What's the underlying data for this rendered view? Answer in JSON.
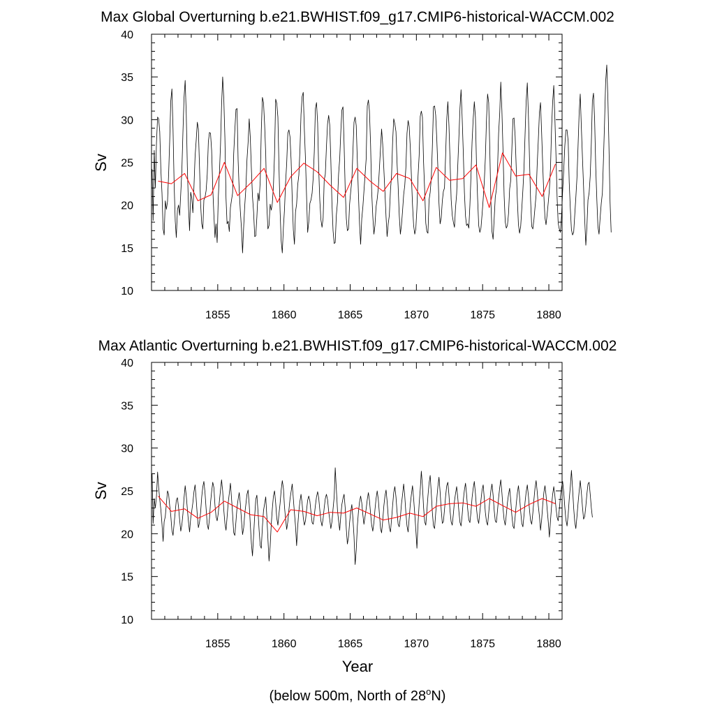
{
  "colors": {
    "raw": "#000000",
    "mean": "#ff0000",
    "axis": "#000000"
  },
  "footnote": {
    "prefix": "(below 500m, North of 28",
    "sup": "o",
    "suffix": "N)"
  },
  "chart_data": [
    {
      "type": "line",
      "id": "global",
      "title": "Max Global Overturning b.e21.BWHIST.f09_g17.CMIP6-historical-WACCM.002",
      "xlabel": "",
      "ylabel": "Sv",
      "xlim": [
        1850,
        1881
      ],
      "ylim": [
        10,
        40
      ],
      "xticks": [
        1855,
        1860,
        1865,
        1870,
        1875,
        1880
      ],
      "yticks": [
        10,
        15,
        20,
        25,
        30,
        35,
        40
      ],
      "series": [
        {
          "name": "monthly",
          "x_start": 1850.04,
          "x_step": 0.0833333,
          "values": [
            24.2,
            18.2,
            26.4,
            22.0,
            27.3,
            30.3,
            30.1,
            28.6,
            24.1,
            21.4,
            17.2,
            16.5,
            20.5,
            19.5,
            20.4,
            23.6,
            27.4,
            32.2,
            33.6,
            28.9,
            22.4,
            18.1,
            16.2,
            19.4,
            20.0,
            18.8,
            21.4,
            23.9,
            28.5,
            32.6,
            34.6,
            30.5,
            24.5,
            19.9,
            17.0,
            21.5,
            20.8,
            19.1,
            22.2,
            25.7,
            27.6,
            29.7,
            28.9,
            24.6,
            20.1,
            17.8,
            17.2,
            20.6,
            20.9,
            21.7,
            23.6,
            27.4,
            28.5,
            28.4,
            26.4,
            22.0,
            18.9,
            16.2,
            17.8,
            15.6,
            20.8,
            23.7,
            27.0,
            31.6,
            35.0,
            32.5,
            27.9,
            20.8,
            17.8,
            18.1,
            16.9,
            19.7,
            20.6,
            21.4,
            26.0,
            28.7,
            31.2,
            31.3,
            25.3,
            21.7,
            19.3,
            17.3,
            14.4,
            17.5,
            19.9,
            21.9,
            25.3,
            27.3,
            30.1,
            28.0,
            24.3,
            21.0,
            19.2,
            16.3,
            16.4,
            18.6,
            21.4,
            20.5,
            22.8,
            28.7,
            32.6,
            32.0,
            29.4,
            25.9,
            20.0,
            17.2,
            17.6,
            20.1,
            19.4,
            20.2,
            22.2,
            26.0,
            32.4,
            31.9,
            30.3,
            24.6,
            19.4,
            15.8,
            14.4,
            17.4,
            19.4,
            22.6,
            24.9,
            28.4,
            28.8,
            28.0,
            25.3,
            20.8,
            17.1,
            15.4,
            19.2,
            20.1,
            22.4,
            23.5,
            26.5,
            30.6,
            32.7,
            33.2,
            28.8,
            25.4,
            21.2,
            16.8,
            18.0,
            20.2,
            20.6,
            21.4,
            23.1,
            26.2,
            31.3,
            32.0,
            29.6,
            24.3,
            20.6,
            18.3,
            17.4,
            18.5,
            22.9,
            23.6,
            26.8,
            29.5,
            30.5,
            29.4,
            25.3,
            20.2,
            17.0,
            15.5,
            15.6,
            18.8,
            20.3,
            23.6,
            25.4,
            28.4,
            31.1,
            31.5,
            27.1,
            21.8,
            18.4,
            17.0,
            17.2,
            20.1,
            21.6,
            22.9,
            26.2,
            29.7,
            30.3,
            29.3,
            25.1,
            21.4,
            17.8,
            15.4,
            18.4,
            19.8,
            21.6,
            23.5,
            25.4,
            31.6,
            32.3,
            31.0,
            27.2,
            21.6,
            18.7,
            16.6,
            17.6,
            19.8,
            20.7,
            22.0,
            24.3,
            26.7,
            28.9,
            27.1,
            24.3,
            21.5,
            18.6,
            16.3,
            17.8,
            18.8,
            21.7,
            23.5,
            27.4,
            30.1,
            29.5,
            28.6,
            24.8,
            22.2,
            18.8,
            16.6,
            17.7,
            19.4,
            21.2,
            22.3,
            24.4,
            28.4,
            29.9,
            29.2,
            26.8,
            23.4,
            20.0,
            17.6,
            16.6,
            17.2,
            19.6,
            23.4,
            25.8,
            30.4,
            31.0,
            30.3,
            25.1,
            21.7,
            17.9,
            16.9,
            16.7,
            20.6,
            21.5,
            23.2,
            26.8,
            31.5,
            31.6,
            30.5,
            27.6,
            24.4,
            20.2,
            17.8,
            18.5,
            20.5,
            21.6,
            22.0,
            25.8,
            30.0,
            32.1,
            29.3,
            25.3,
            20.7,
            18.8,
            18.0,
            17.4,
            19.7,
            21.3,
            24.6,
            27.9,
            31.4,
            33.5,
            30.2,
            26.2,
            21.5,
            18.7,
            17.6,
            17.8,
            17.3,
            20.0,
            23.6,
            27.4,
            30.1,
            32.1,
            30.3,
            24.5,
            20.8,
            17.6,
            16.8,
            17.3,
            18.9,
            20.7,
            22.6,
            25.5,
            29.9,
            33.0,
            32.0,
            26.8,
            20.5,
            16.9,
            16.0,
            18.5,
            20.9,
            21.8,
            24.1,
            28.4,
            30.8,
            34.4,
            31.1,
            26.4,
            21.1,
            18.0,
            17.3,
            17.6,
            19.0,
            21.9,
            22.9,
            26.4,
            30.1,
            30.2,
            28.0,
            24.2,
            20.5,
            17.7,
            16.7,
            17.5,
            19.6,
            21.8,
            24.2,
            28.3,
            32.2,
            34.3,
            30.4,
            25.5,
            20.6,
            17.5,
            17.2,
            18.3,
            19.7,
            21.2,
            24.8,
            27.7,
            30.9,
            32.0,
            28.5,
            24.6,
            21.1,
            18.5,
            17.7,
            18.9,
            20.3,
            21.8,
            24.3,
            29.1,
            32.1,
            34.0,
            30.1,
            25.7,
            20.8,
            17.9,
            17.2,
            16.8,
            18.7,
            21.6,
            24.0,
            26.9,
            28.8,
            28.8,
            27.5,
            22.7,
            19.6,
            17.1,
            16.5,
            16.8,
            18.8,
            20.9,
            23.2,
            27.0,
            30.9,
            33.0,
            29.1,
            25.5,
            22.1,
            18.3,
            15.3,
            17.4,
            20.6,
            21.4,
            23.4,
            27.3,
            32.2,
            33.1,
            30.0,
            24.4,
            20.6,
            17.5,
            16.6,
            18.5,
            20.2,
            21.4,
            25.2,
            29.6,
            34.5,
            36.4,
            32.5,
            27.0,
            20.4,
            16.8
          ]
        },
        {
          "name": "annual mean",
          "x": [
            1850.5,
            1851.5,
            1852.5,
            1853.5,
            1854.5,
            1855.5,
            1856.5,
            1857.5,
            1858.5,
            1859.5,
            1860.5,
            1861.5,
            1862.5,
            1863.5,
            1864.5,
            1865.5,
            1866.5,
            1867.5,
            1868.5,
            1869.5,
            1870.5,
            1871.5,
            1872.5,
            1873.5,
            1874.5,
            1875.5,
            1876.5,
            1877.5,
            1878.5,
            1879.5,
            1880.5
          ],
          "values": [
            22.8,
            22.5,
            23.7,
            20.5,
            21.2,
            25.0,
            21.1,
            22.6,
            24.3,
            20.3,
            23.3,
            24.9,
            23.9,
            22.3,
            20.9,
            24.3,
            22.8,
            21.6,
            23.7,
            23.1,
            20.5,
            24.4,
            22.9,
            23.1,
            24.7,
            19.7,
            26.1,
            23.4,
            23.6,
            21.0,
            24.8
          ]
        }
      ]
    },
    {
      "type": "line",
      "id": "atlantic",
      "title": "Max Atlantic Overturning b.e21.BWHIST.f09_g17.CMIP6-historical-WACCM.002",
      "xlabel": "Year",
      "ylabel": "Sv",
      "xlim": [
        1850,
        1881
      ],
      "ylim": [
        10,
        40
      ],
      "xticks": [
        1855,
        1860,
        1865,
        1870,
        1875,
        1880
      ],
      "yticks": [
        10,
        15,
        20,
        25,
        30,
        35,
        40
      ],
      "series": [
        {
          "name": "monthly",
          "x_start": 1850.04,
          "x_step": 0.0833333,
          "values": [
            27.0,
            21.2,
            24.1,
            23.0,
            24.4,
            27.2,
            25.4,
            24.0,
            22.8,
            21.1,
            19.1,
            21.4,
            22.0,
            23.5,
            25.0,
            24.6,
            23.3,
            22.1,
            20.4,
            19.8,
            21.2,
            22.6,
            23.9,
            24.2,
            23.1,
            21.6,
            20.3,
            21.0,
            22.3,
            24.2,
            25.6,
            24.4,
            22.9,
            21.4,
            20.2,
            21.8,
            22.7,
            23.6,
            24.9,
            25.7,
            24.0,
            22.1,
            20.7,
            21.3,
            22.5,
            24.3,
            25.5,
            26.1,
            24.8,
            22.9,
            21.1,
            20.5,
            21.8,
            23.6,
            24.9,
            26.0,
            25.4,
            23.3,
            22.0,
            21.5,
            22.4,
            23.8,
            25.1,
            26.3,
            25.0,
            22.8,
            21.2,
            20.4,
            21.9,
            23.6,
            24.7,
            25.9,
            24.1,
            22.3,
            20.1,
            19.8,
            21.4,
            23.1,
            24.0,
            24.8,
            23.5,
            21.6,
            19.9,
            20.7,
            22.3,
            23.4,
            24.6,
            25.1,
            23.4,
            21.2,
            18.9,
            17.4,
            19.8,
            22.1,
            24.0,
            24.5,
            22.6,
            20.4,
            18.6,
            18.3,
            20.8,
            22.7,
            23.5,
            24.3,
            22.1,
            19.4,
            16.8,
            18.5,
            21.1,
            22.9,
            24.4,
            25.0,
            23.6,
            21.8,
            21.0,
            22.3,
            23.5,
            25.1,
            26.2,
            25.3,
            23.2,
            21.7,
            20.5,
            21.4,
            22.8,
            24.0,
            24.9,
            25.8,
            24.1,
            22.4,
            20.9,
            18.6,
            20.9,
            22.6,
            23.8,
            24.6,
            23.5,
            21.9,
            21.0,
            21.5,
            22.7,
            23.9,
            24.4,
            23.8,
            22.5,
            21.3,
            21.1,
            22.1,
            23.3,
            24.3,
            24.9,
            24.2,
            22.8,
            21.5,
            20.9,
            21.8,
            23.0,
            24.1,
            24.6,
            24.0,
            22.6,
            21.7,
            20.6,
            21.4,
            22.9,
            24.3,
            27.7,
            25.2,
            22.8,
            21.5,
            20.4,
            22.0,
            23.4,
            24.1,
            24.6,
            23.0,
            20.5,
            18.8,
            19.6,
            21.3,
            22.6,
            23.4,
            21.8,
            19.7,
            16.4,
            18.1,
            20.9,
            22.5,
            23.7,
            24.4,
            23.6,
            22.2,
            21.1,
            22.0,
            22.9,
            24.0,
            24.8,
            23.9,
            22.4,
            21.0,
            20.3,
            21.3,
            22.8,
            24.1,
            25.0,
            24.0,
            22.3,
            20.6,
            20.1,
            21.5,
            23.2,
            24.4,
            25.1,
            23.8,
            22.0,
            20.7,
            20.2,
            21.7,
            23.3,
            24.8,
            25.5,
            24.3,
            22.5,
            21.1,
            20.8,
            21.9,
            23.5,
            24.6,
            25.8,
            24.4,
            22.4,
            20.9,
            20.2,
            21.8,
            23.4,
            24.6,
            25.6,
            24.1,
            22.3,
            20.5,
            18.3,
            21.2,
            23.5,
            25.2,
            27.3,
            25.6,
            23.1,
            21.4,
            21.0,
            22.6,
            24.4,
            25.9,
            26.8,
            24.7,
            22.5,
            20.9,
            20.6,
            22.4,
            24.1,
            25.5,
            26.6,
            24.9,
            22.8,
            21.2,
            21.4,
            22.8,
            24.4,
            25.6,
            26.0,
            24.5,
            22.7,
            21.4,
            21.0,
            22.3,
            23.8,
            24.7,
            25.5,
            24.2,
            22.6,
            21.3,
            20.9,
            22.2,
            23.9,
            25.1,
            25.9,
            24.6,
            22.9,
            21.6,
            21.3,
            22.6,
            24.2,
            25.3,
            26.1,
            24.7,
            22.9,
            21.7,
            21.2,
            22.5,
            23.9,
            25.1,
            25.7,
            24.2,
            22.5,
            21.4,
            21.0,
            22.4,
            23.8,
            25.0,
            25.8,
            24.5,
            22.7,
            21.5,
            21.3,
            22.7,
            24.2,
            25.4,
            26.3,
            24.8,
            23.0,
            21.6,
            21.0,
            22.2,
            23.6,
            24.6,
            25.3,
            23.9,
            22.2,
            20.9,
            20.6,
            22.0,
            23.5,
            24.8,
            25.6,
            24.3,
            22.6,
            21.2,
            20.8,
            22.1,
            23.7,
            24.9,
            25.7,
            24.4,
            22.8,
            21.5,
            21.1,
            22.4,
            24.0,
            25.3,
            26.2,
            24.9,
            23.2,
            22.0,
            20.4,
            21.6,
            23.4,
            24.8,
            25.6,
            24.5,
            22.9,
            21.4,
            19.6,
            21.5,
            23.3,
            24.6,
            25.5,
            24.4,
            23.0,
            21.9,
            21.5,
            22.8,
            24.3,
            25.4,
            26.1,
            24.9,
            23.1,
            21.6,
            20.9,
            22.2,
            24.0,
            25.5,
            27.4,
            25.3,
            23.0,
            21.4,
            20.6,
            22.0,
            23.6,
            25.0,
            26.2,
            24.8,
            23.1,
            21.7,
            22.0,
            23.2,
            24.6,
            25.8,
            26.0,
            24.6,
            23.0,
            21.9
          ]
        },
        {
          "name": "annual mean",
          "x": [
            1850.5,
            1851.5,
            1852.5,
            1853.5,
            1854.5,
            1855.5,
            1856.5,
            1857.5,
            1858.5,
            1859.5,
            1860.5,
            1861.5,
            1862.5,
            1863.5,
            1864.5,
            1865.5,
            1866.5,
            1867.5,
            1868.5,
            1869.5,
            1870.5,
            1871.5,
            1872.5,
            1873.5,
            1874.5,
            1875.5,
            1876.5,
            1877.5,
            1878.5,
            1879.5,
            1880.5
          ],
          "values": [
            24.4,
            22.6,
            22.9,
            21.8,
            22.5,
            23.8,
            23.0,
            22.2,
            22.0,
            20.2,
            22.8,
            22.6,
            22.1,
            22.5,
            22.4,
            23.0,
            22.3,
            21.6,
            21.9,
            22.4,
            22.0,
            23.2,
            23.5,
            23.6,
            23.2,
            24.1,
            23.3,
            22.5,
            23.4,
            24.1,
            23.5
          ]
        }
      ]
    }
  ]
}
